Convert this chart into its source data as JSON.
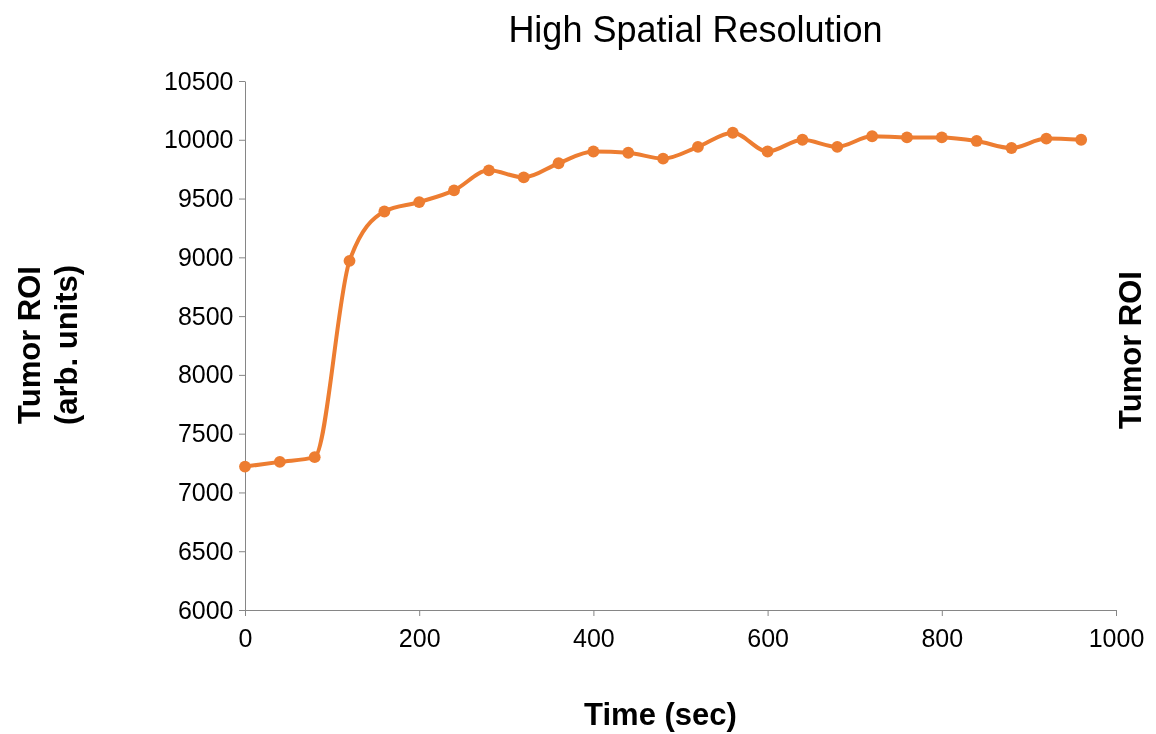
{
  "chart_data": {
    "type": "line",
    "title": "High Spatial Resolution",
    "xlabel": "Time (sec)",
    "ylabel": "Tumor ROI\n(arb. units)",
    "y2label": "Tumor ROI",
    "x": [
      0,
      40,
      80,
      120,
      160,
      200,
      240,
      280,
      320,
      360,
      400,
      440,
      480,
      520,
      560,
      600,
      640,
      680,
      720,
      760,
      800,
      840,
      880,
      920,
      960
    ],
    "series": [
      {
        "color": "#ed7d31",
        "values": [
          7220,
          7260,
          7300,
          8970,
          9390,
          9470,
          9570,
          9740,
          9680,
          9800,
          9900,
          9890,
          9840,
          9940,
          10060,
          9900,
          10000,
          9940,
          10030,
          10020,
          10020,
          9990,
          9930,
          10010,
          10000
        ]
      }
    ],
    "xlim": [
      0,
      1000
    ],
    "xticks": [
      0,
      200,
      400,
      600,
      800,
      1000
    ],
    "ylim": [
      6000,
      10500
    ],
    "yticks": [
      6000,
      6500,
      7000,
      7500,
      8000,
      8500,
      9000,
      9500,
      10000,
      10500
    ],
    "grid": false,
    "marker": "circle",
    "line_style": "solid"
  }
}
